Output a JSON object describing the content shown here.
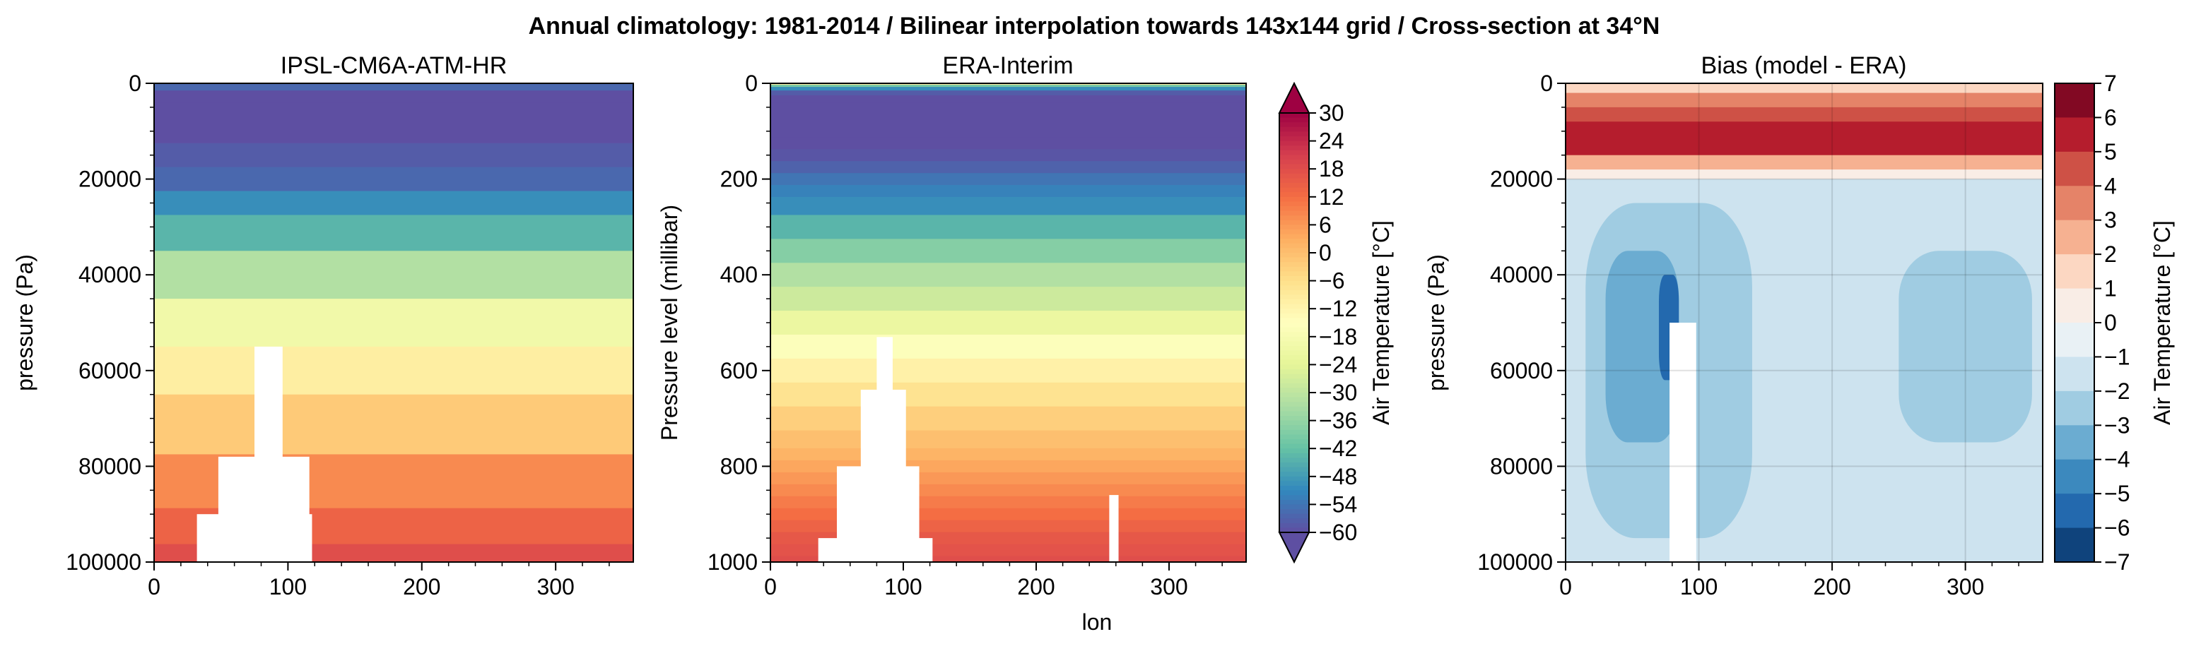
{
  "suptitle": "Annual climatology: 1981-2014 / Bilinear interpolation towards 143x144 grid / Cross-section at 34°N",
  "shared_xlabel": "lon",
  "chart_data": [
    {
      "type": "heatmap",
      "title": "IPSL-CM6A-ATM-HR",
      "xlabel": "",
      "ylabel": "pressure (Pa)",
      "xlim": [
        0,
        358
      ],
      "ylim": [
        100000,
        0
      ],
      "x_ticks": [
        "0",
        "100",
        "200",
        "300"
      ],
      "y_ticks": [
        "0",
        "20000",
        "40000",
        "60000",
        "80000",
        "100000"
      ],
      "z_unit": "°C",
      "levels_pa": [
        1000,
        2000,
        3000,
        5000,
        7000,
        10000,
        15000,
        20000,
        25000,
        30000,
        40000,
        50000,
        60000,
        70000,
        85000,
        92500,
        100000
      ],
      "temperature_c": [
        -56,
        -60,
        -62,
        -63,
        -62,
        -60,
        -58,
        -56,
        -50,
        -44,
        -32,
        -20,
        -10,
        -2,
        8,
        14,
        18
      ],
      "masked_regions": [
        {
          "lon": [
            75,
            96
          ],
          "min_pressure_pa": 55000
        },
        {
          "lon": [
            48,
            116
          ],
          "min_pressure_pa": 78000
        },
        {
          "lon": [
            32,
            118
          ],
          "min_pressure_pa": 90000
        }
      ]
    },
    {
      "type": "heatmap",
      "title": "ERA-Interim",
      "xlabel": "lon",
      "ylabel": "Pressure level (millibar)",
      "xlim": [
        0,
        358
      ],
      "ylim": [
        1000,
        0
      ],
      "x_ticks": [
        "0",
        "100",
        "200",
        "300"
      ],
      "y_ticks": [
        "0",
        "200",
        "400",
        "600",
        "800",
        "1000"
      ],
      "z_unit": "°C",
      "levels_mb": [
        1,
        5,
        10,
        20,
        30,
        50,
        70,
        100,
        125,
        150,
        175,
        200,
        225,
        250,
        300,
        350,
        400,
        450,
        500,
        550,
        600,
        650,
        700,
        750,
        775,
        800,
        825,
        850,
        875,
        900,
        925,
        950,
        975,
        1000
      ],
      "temperature_c": [
        -10,
        -40,
        -50,
        -58,
        -60,
        -60,
        -62,
        -62,
        -61,
        -59,
        -57,
        -54,
        -52,
        -50,
        -44,
        -38,
        -32,
        -28,
        -22,
        -16,
        -11,
        -7,
        -3,
        0,
        2,
        4,
        6,
        8,
        10,
        12,
        14,
        16,
        17,
        18
      ],
      "masked_regions": [
        {
          "lon": [
            80,
            92
          ],
          "min_pressure_mb": 530
        },
        {
          "lon": [
            68,
            102
          ],
          "min_pressure_mb": 640
        },
        {
          "lon": [
            50,
            112
          ],
          "min_pressure_mb": 800
        },
        {
          "lon": [
            255,
            262
          ],
          "min_pressure_mb": 860
        },
        {
          "lon": [
            36,
            122
          ],
          "min_pressure_mb": 950
        }
      ],
      "colorbar": {
        "label": "Air Temperature [°C]",
        "ticks": [
          "30",
          "24",
          "18",
          "12",
          "6",
          "0",
          "−6",
          "−12",
          "−18",
          "−24",
          "−30",
          "−36",
          "−42",
          "−48",
          "−54",
          "−60"
        ],
        "range": [
          -60,
          30
        ],
        "colormap": "Spectral_r"
      }
    },
    {
      "type": "heatmap",
      "title": "Bias (model - ERA)",
      "xlabel": "",
      "ylabel": "pressure (Pa)",
      "xlim": [
        0,
        358
      ],
      "ylim": [
        100000,
        0
      ],
      "grid": true,
      "x_ticks": [
        "0",
        "100",
        "200",
        "300"
      ],
      "y_ticks": [
        "0",
        "20000",
        "40000",
        "60000",
        "80000",
        "100000"
      ],
      "z_unit": "°C",
      "bias_bands": [
        {
          "pressure_pa": [
            0,
            2000
          ],
          "bias_c": 1.5
        },
        {
          "pressure_pa": [
            2000,
            5000
          ],
          "bias_c": 3.5
        },
        {
          "pressure_pa": [
            5000,
            8000
          ],
          "bias_c": 4.5
        },
        {
          "pressure_pa": [
            8000,
            15000
          ],
          "bias_c": 5.5
        },
        {
          "pressure_pa": [
            15000,
            18000
          ],
          "bias_c": 2.5
        },
        {
          "pressure_pa": [
            18000,
            20000
          ],
          "bias_c": 0.5
        },
        {
          "pressure_pa": [
            20000,
            100000
          ],
          "bias_c": -1.5
        }
      ],
      "bias_patches": [
        {
          "lon": [
            15,
            140
          ],
          "pressure_pa": [
            25000,
            95000
          ],
          "bias_c": -2.5
        },
        {
          "lon": [
            250,
            350
          ],
          "pressure_pa": [
            35000,
            75000
          ],
          "bias_c": -2.5
        },
        {
          "lon": [
            30,
            85
          ],
          "pressure_pa": [
            35000,
            75000
          ],
          "bias_c": -3.5
        },
        {
          "lon": [
            70,
            85
          ],
          "pressure_pa": [
            40000,
            62000
          ],
          "bias_c": -5.5
        }
      ],
      "masked_regions": [
        {
          "lon": [
            78,
            98
          ],
          "min_pressure_pa": 50000
        }
      ],
      "colorbar": {
        "label": "Air Temperature [°C]",
        "ticks": [
          "7",
          "6",
          "5",
          "4",
          "3",
          "2",
          "1",
          "0",
          "−1",
          "−2",
          "−3",
          "−4",
          "−5",
          "−6",
          "−7"
        ],
        "range": [
          -7,
          7
        ],
        "colormap": "RdBu_r"
      }
    }
  ]
}
